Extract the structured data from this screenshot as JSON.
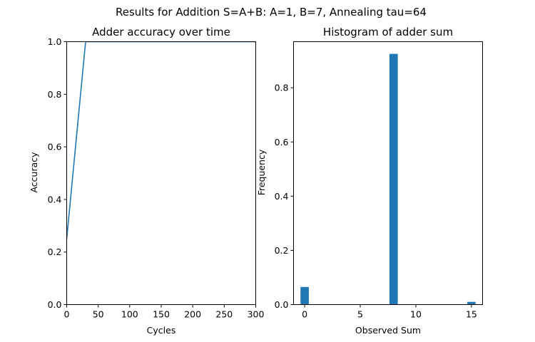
{
  "figure": {
    "suptitle": "Results for Addition S=A+B: A=1, B=7, Annealing tau=64"
  },
  "chart_data": [
    {
      "type": "line",
      "title": "Adder accuracy over time",
      "xlabel": "Cycles",
      "ylabel": "Accuracy",
      "xlim": [
        0,
        300
      ],
      "ylim": [
        0,
        1.0
      ],
      "xticks": [
        "0",
        "50",
        "100",
        "150",
        "200",
        "250",
        "300"
      ],
      "yticks": [
        "0.0",
        "0.2",
        "0.4",
        "0.6",
        "0.8",
        "1.0"
      ],
      "grid": false,
      "color": "#1f77b4",
      "x": [
        0,
        30,
        300
      ],
      "y": [
        0.25,
        1.0,
        1.0
      ]
    },
    {
      "type": "bar",
      "title": "Histogram of adder sum",
      "xlabel": "Observed Sum",
      "ylabel": "Frequency",
      "xlim": [
        -1.0,
        16.0
      ],
      "ylim": [
        0,
        0.97
      ],
      "xticks": [
        "0",
        "5",
        "10",
        "15"
      ],
      "yticks": [
        "0.0",
        "0.2",
        "0.4",
        "0.6",
        "0.8"
      ],
      "grid": false,
      "color": "#1f77b4",
      "bin_width": 0.75,
      "x": [
        0,
        8,
        15
      ],
      "values": [
        0.065,
        0.925,
        0.01
      ]
    }
  ]
}
